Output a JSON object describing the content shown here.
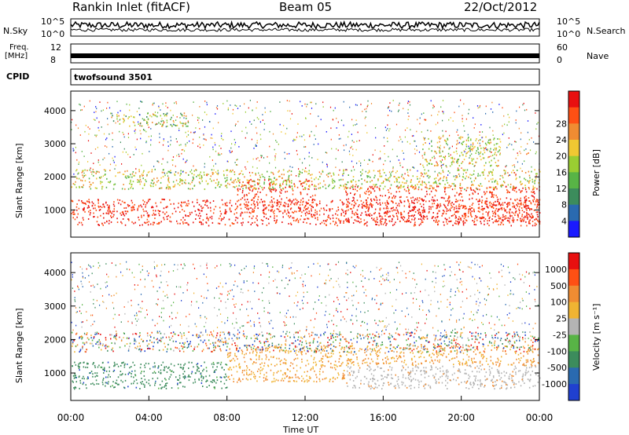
{
  "header": {
    "station": "Rankin Inlet (fitACF)",
    "beam": "Beam 05",
    "date": "22/Oct/2012"
  },
  "noise_panel": {
    "left_label": "N.Sky",
    "right_label": "N.Search",
    "left_ticks": [
      "10^5",
      "10^0"
    ],
    "right_ticks": [
      "10^5",
      "10^0"
    ]
  },
  "freq_panel": {
    "left_label_1": "Freq.",
    "left_label_2": "[MHz]",
    "right_label": "Nave",
    "left_ticks": [
      "12",
      "8"
    ],
    "right_ticks": [
      "60",
      "0"
    ]
  },
  "cpid_panel": {
    "label": "CPID",
    "value": "twofsound 3501"
  },
  "chart_data": [
    {
      "type": "heatmap",
      "name": "power",
      "ylabel": "Slant Range [km]",
      "ylim": [
        180,
        4590
      ],
      "yticks": [
        1000,
        2000,
        3000,
        4000
      ],
      "colorbar_label": "Power [dB]",
      "colorbar_ticks": [
        "4",
        "8",
        "12",
        "16",
        "20",
        "24",
        "28"
      ],
      "colors": [
        "#1a1aff",
        "#2a6ab0",
        "#3c8c5c",
        "#58b446",
        "#9acd32",
        "#f0c832",
        "#f08c32",
        "#ff5014",
        "#e81010"
      ],
      "regions": [
        {
          "t0": 0.0,
          "t1": 24.0,
          "r0": 500,
          "r1": 1300,
          "level": "strong"
        },
        {
          "t0": 8.5,
          "t1": 12.5,
          "r0": 900,
          "r1": 1900,
          "level": "strong"
        },
        {
          "t0": 14.0,
          "t1": 24.0,
          "r0": 600,
          "r1": 1700,
          "level": "strong"
        },
        {
          "t0": 0.0,
          "t1": 24.0,
          "r0": 1600,
          "r1": 2200,
          "level": "medium"
        },
        {
          "t0": 2.0,
          "t1": 6.0,
          "r0": 3500,
          "r1": 3900,
          "level": "weak"
        },
        {
          "t0": 18.0,
          "t1": 22.0,
          "r0": 2300,
          "r1": 3200,
          "level": "medium"
        }
      ]
    },
    {
      "type": "heatmap",
      "name": "velocity",
      "ylabel": "Slant Range [km]",
      "xlabel": "Time UT",
      "ylim": [
        180,
        4590
      ],
      "yticks": [
        1000,
        2000,
        3000,
        4000
      ],
      "xticks": [
        "00:00",
        "04:00",
        "08:00",
        "12:00",
        "16:00",
        "20:00",
        "00:00"
      ],
      "colorbar_label": "Velocity [m s⁻¹]",
      "colorbar_ticks": [
        "1000",
        "500",
        "100",
        "25",
        "-25",
        "-100",
        "-500",
        "-1000"
      ],
      "colors": [
        "#2040d0",
        "#2a6ab0",
        "#3c8c5c",
        "#58b446",
        "#b4b4b4",
        "#f0b432",
        "#f08c32",
        "#ff5014",
        "#e81010"
      ],
      "regions": [
        {
          "t0": 0.0,
          "t1": 8.0,
          "r0": 500,
          "r1": 1300,
          "level": "green"
        },
        {
          "t0": 8.0,
          "t1": 14.0,
          "r0": 700,
          "r1": 1800,
          "level": "orange"
        },
        {
          "t0": 14.0,
          "t1": 24.0,
          "r0": 500,
          "r1": 1200,
          "level": "gray"
        },
        {
          "t0": 14.0,
          "t1": 24.0,
          "r0": 1200,
          "r1": 1800,
          "level": "orange"
        },
        {
          "t0": 0.0,
          "t1": 24.0,
          "r0": 1600,
          "r1": 2200,
          "level": "mixed"
        }
      ]
    }
  ]
}
